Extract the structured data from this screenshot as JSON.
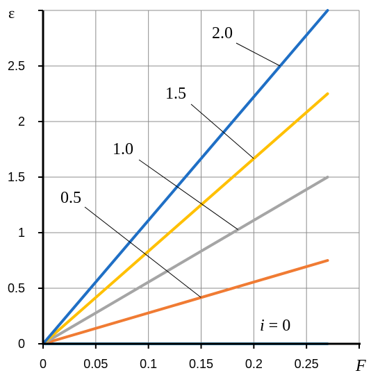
{
  "chart_data": {
    "type": "line",
    "xlabel": "F",
    "ylabel": "ε",
    "xlim": [
      0,
      0.3
    ],
    "ylim": [
      0,
      3.0
    ],
    "x_ticks": [
      0,
      0.05,
      0.1,
      0.15,
      0.2,
      0.25
    ],
    "x_tick_labels": [
      "0",
      "0.05",
      "0.1",
      "0.15",
      "0.2",
      "0.25"
    ],
    "y_ticks": [
      0,
      0.5,
      1,
      1.5,
      2,
      2.5
    ],
    "y_tick_labels": [
      "0",
      "0.5",
      "1",
      "1.5",
      "2",
      "2.5"
    ],
    "grid": true,
    "legend": "none",
    "series": [
      {
        "label": "2.0",
        "x": [
          0,
          0.27
        ],
        "y": [
          0,
          3.0
        ],
        "color": "#1F6FC5"
      },
      {
        "label": "1.5",
        "x": [
          0,
          0.27
        ],
        "y": [
          0,
          2.25
        ],
        "color": "#FFC000"
      },
      {
        "label": "1.0",
        "x": [
          0,
          0.27
        ],
        "y": [
          0,
          1.5
        ],
        "color": "#A5A5A5"
      },
      {
        "label": "0.5",
        "x": [
          0,
          0.27
        ],
        "y": [
          0,
          0.75
        ],
        "color": "#F07B33"
      },
      {
        "label": "i = 0",
        "x": [
          0,
          0.27
        ],
        "y": [
          0,
          0
        ],
        "color": "#2E9BD6"
      }
    ],
    "annotations": [
      {
        "text": "2.0",
        "series": 0
      },
      {
        "text": "1.5",
        "series": 1
      },
      {
        "text": "1.0",
        "series": 2
      },
      {
        "text": "0.5",
        "series": 3
      },
      {
        "text_italic": "i",
        "text_rest": " = 0",
        "series": 4
      }
    ]
  }
}
